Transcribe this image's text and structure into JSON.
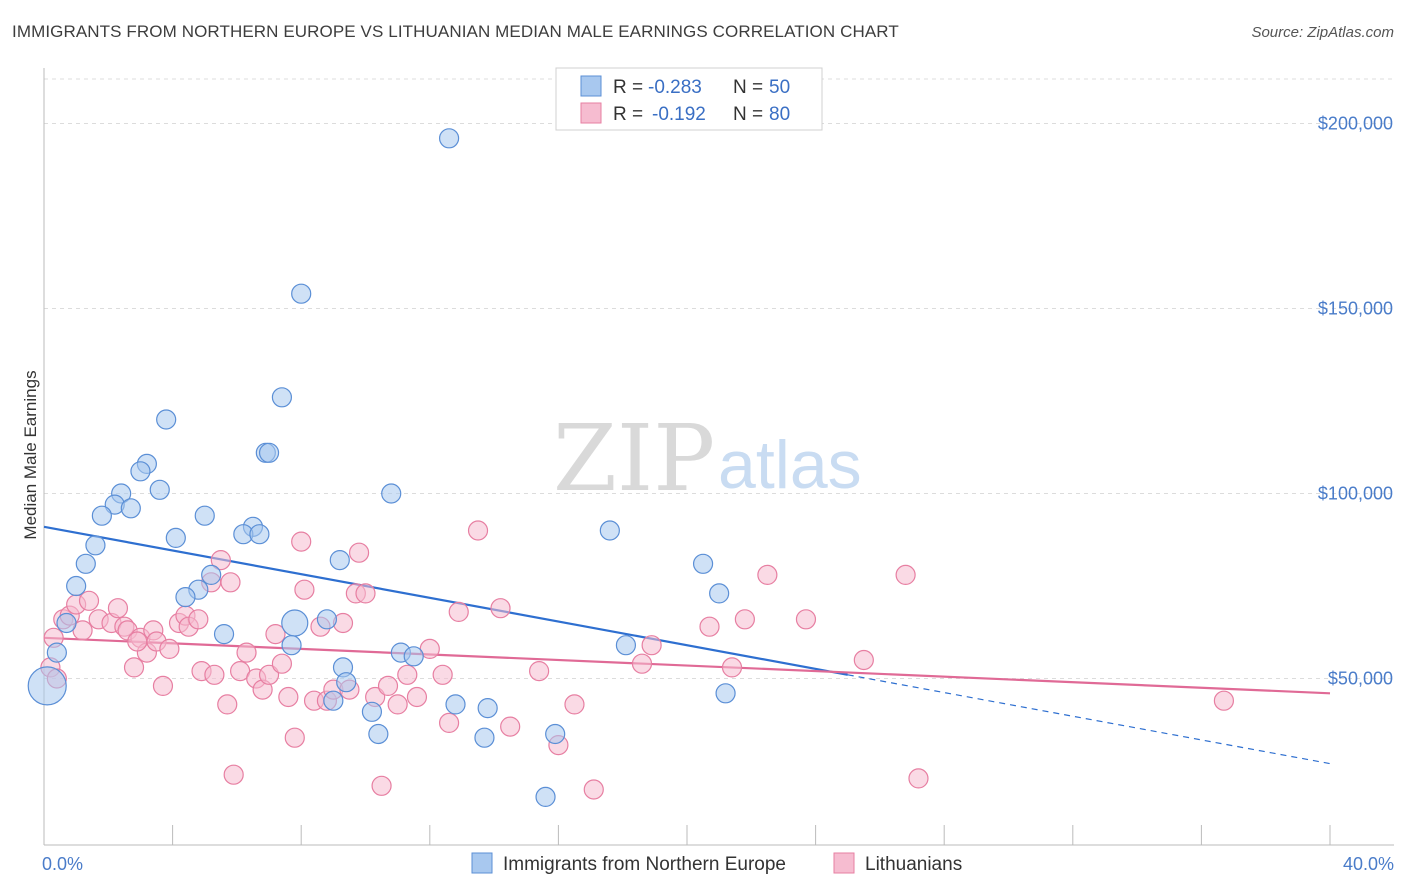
{
  "header": {
    "title": "IMMIGRANTS FROM NORTHERN EUROPE VS LITHUANIAN MEDIAN MALE EARNINGS CORRELATION CHART",
    "source": "Source: ZipAtlas.com"
  },
  "watermark": {
    "zip": "ZIP",
    "atlas": "atlas"
  },
  "legend": {
    "series1": {
      "r_label": "R =",
      "r_value": "-0.283",
      "n_label": "N =",
      "n_value": "50"
    },
    "series2": {
      "r_label": "R =",
      "r_value": "-0.192",
      "n_label": "N =",
      "n_value": "80"
    }
  },
  "bottom_legend": {
    "series1": "Immigrants from Northern Europe",
    "series2": "Lithuanians"
  },
  "colors": {
    "blue_fill": "#a8c8ef",
    "blue_stroke": "#5b8fd6",
    "blue_line": "#2e6fd0",
    "pink_fill": "#f6bcd0",
    "pink_stroke": "#e77fa2",
    "pink_line": "#e06a96",
    "tick_label": "#4a7cc9"
  },
  "chart_data": {
    "type": "scatter",
    "title": "IMMIGRANTS FROM NORTHERN EUROPE VS LITHUANIAN MEDIAN MALE EARNINGS CORRELATION CHART",
    "xlabel": "",
    "ylabel": "Median Male Earnings",
    "xlim": [
      0,
      40
    ],
    "ylim": [
      5000,
      215000
    ],
    "x_tick_labels": {
      "min": "0.0%",
      "max": "40.0%"
    },
    "y_ticks": [
      50000,
      100000,
      150000,
      200000
    ],
    "y_tick_labels": [
      "$50,000",
      "$100,000",
      "$150,000",
      "$200,000"
    ],
    "grid": "horizontal dashed",
    "legend_position": "top-center",
    "series": [
      {
        "name": "Immigrants from Northern Europe",
        "color": "#a8c8ef",
        "R": -0.283,
        "N": 50,
        "trend": {
          "x": [
            0,
            25
          ],
          "y": [
            91000,
            51000
          ],
          "dashed_x": [
            25,
            40
          ],
          "dashed_y": [
            51000,
            27000
          ]
        },
        "points": [
          [
            12.6,
            196000
          ],
          [
            8.0,
            154000
          ],
          [
            3.8,
            120000
          ],
          [
            7.4,
            126000
          ],
          [
            6.9,
            111000
          ],
          [
            7.0,
            111000
          ],
          [
            3.2,
            108000
          ],
          [
            3.0,
            106000
          ],
          [
            3.6,
            101000
          ],
          [
            2.4,
            100000
          ],
          [
            2.2,
            97000
          ],
          [
            2.7,
            96000
          ],
          [
            1.8,
            94000
          ],
          [
            5.0,
            94000
          ],
          [
            10.8,
            100000
          ],
          [
            4.1,
            88000
          ],
          [
            1.6,
            86000
          ],
          [
            6.5,
            91000
          ],
          [
            6.2,
            89000
          ],
          [
            6.7,
            89000
          ],
          [
            17.6,
            90000
          ],
          [
            1.3,
            81000
          ],
          [
            1.0,
            75000
          ],
          [
            5.2,
            78000
          ],
          [
            4.8,
            74000
          ],
          [
            4.4,
            72000
          ],
          [
            9.2,
            82000
          ],
          [
            20.5,
            81000
          ],
          [
            21.0,
            73000
          ],
          [
            0.7,
            65000
          ],
          [
            0.4,
            57000
          ],
          [
            7.8,
            65000
          ],
          [
            8.8,
            66000
          ],
          [
            5.6,
            62000
          ],
          [
            7.7,
            59000
          ],
          [
            18.1,
            59000
          ],
          [
            11.1,
            57000
          ],
          [
            11.5,
            56000
          ],
          [
            9.3,
            53000
          ],
          [
            9.4,
            49000
          ],
          [
            9.0,
            44000
          ],
          [
            10.2,
            41000
          ],
          [
            12.8,
            43000
          ],
          [
            13.8,
            42000
          ],
          [
            10.4,
            35000
          ],
          [
            13.7,
            34000
          ],
          [
            15.9,
            35000
          ],
          [
            21.2,
            46000
          ],
          [
            15.6,
            18000
          ],
          [
            0.1,
            48000
          ]
        ]
      },
      {
        "name": "Lithuanians",
        "color": "#f6bcd0",
        "R": -0.192,
        "N": 80,
        "trend": {
          "x": [
            0,
            40
          ],
          "y": [
            61000,
            46000
          ]
        },
        "points": [
          [
            0.3,
            61000
          ],
          [
            0.6,
            66000
          ],
          [
            0.8,
            67000
          ],
          [
            1.0,
            70000
          ],
          [
            1.4,
            71000
          ],
          [
            1.7,
            66000
          ],
          [
            2.1,
            65000
          ],
          [
            2.3,
            69000
          ],
          [
            2.5,
            64000
          ],
          [
            2.6,
            63000
          ],
          [
            2.8,
            53000
          ],
          [
            3.0,
            61000
          ],
          [
            3.2,
            57000
          ],
          [
            3.4,
            63000
          ],
          [
            3.5,
            60000
          ],
          [
            3.7,
            48000
          ],
          [
            3.9,
            58000
          ],
          [
            4.2,
            65000
          ],
          [
            4.4,
            67000
          ],
          [
            4.5,
            64000
          ],
          [
            4.8,
            66000
          ],
          [
            4.9,
            52000
          ],
          [
            5.2,
            76000
          ],
          [
            5.3,
            51000
          ],
          [
            5.5,
            82000
          ],
          [
            5.7,
            43000
          ],
          [
            5.8,
            76000
          ],
          [
            5.9,
            24000
          ],
          [
            6.1,
            52000
          ],
          [
            6.3,
            57000
          ],
          [
            6.6,
            50000
          ],
          [
            6.8,
            47000
          ],
          [
            7.0,
            51000
          ],
          [
            7.2,
            62000
          ],
          [
            7.4,
            54000
          ],
          [
            7.6,
            45000
          ],
          [
            7.8,
            34000
          ],
          [
            8.0,
            87000
          ],
          [
            8.1,
            74000
          ],
          [
            8.4,
            44000
          ],
          [
            8.6,
            64000
          ],
          [
            8.8,
            44000
          ],
          [
            9.0,
            47000
          ],
          [
            9.3,
            65000
          ],
          [
            9.5,
            47000
          ],
          [
            9.7,
            73000
          ],
          [
            9.8,
            84000
          ],
          [
            10.0,
            73000
          ],
          [
            10.3,
            45000
          ],
          [
            10.5,
            21000
          ],
          [
            10.7,
            48000
          ],
          [
            11.0,
            43000
          ],
          [
            11.3,
            51000
          ],
          [
            11.6,
            45000
          ],
          [
            12.0,
            58000
          ],
          [
            12.4,
            51000
          ],
          [
            12.6,
            38000
          ],
          [
            12.9,
            68000
          ],
          [
            13.5,
            90000
          ],
          [
            14.2,
            69000
          ],
          [
            14.5,
            37000
          ],
          [
            15.4,
            52000
          ],
          [
            16.0,
            32000
          ],
          [
            16.5,
            43000
          ],
          [
            17.1,
            20000
          ],
          [
            18.6,
            54000
          ],
          [
            18.9,
            59000
          ],
          [
            20.7,
            64000
          ],
          [
            21.4,
            53000
          ],
          [
            21.8,
            66000
          ],
          [
            22.5,
            78000
          ],
          [
            23.7,
            66000
          ],
          [
            25.5,
            55000
          ],
          [
            26.8,
            78000
          ],
          [
            27.2,
            23000
          ],
          [
            36.7,
            44000
          ],
          [
            0.2,
            53000
          ],
          [
            1.2,
            63000
          ],
          [
            2.9,
            60000
          ],
          [
            0.4,
            50000
          ]
        ]
      }
    ]
  }
}
